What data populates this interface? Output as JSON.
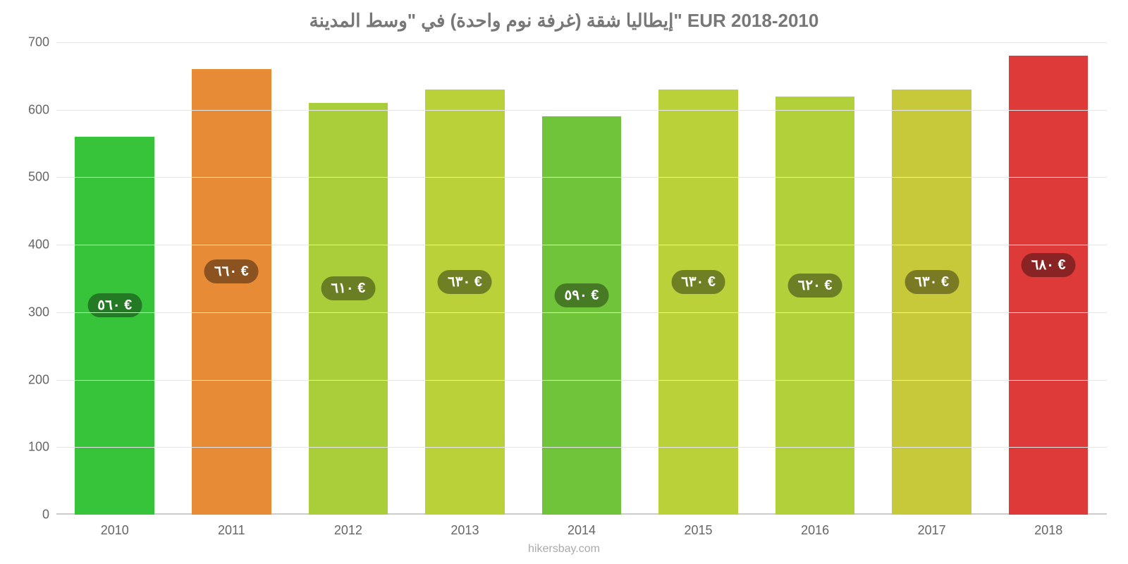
{
  "chart": {
    "type": "bar",
    "title": "إيطاليا شقة (غرفة نوم واحدة) في \"وسط المدينة\" EUR 2018-2010",
    "title_fontsize": 26,
    "title_color": "#777777",
    "background_color": "#ffffff",
    "grid_color": "#e6e6e6",
    "axis_color": "#cccccc",
    "y": {
      "min": 0,
      "max": 700,
      "ticks": [
        0,
        100,
        200,
        300,
        400,
        500,
        600,
        700
      ],
      "tick_fontsize": 18,
      "tick_color": "#666666"
    },
    "x": {
      "categories": [
        "2010",
        "2011",
        "2012",
        "2013",
        "2014",
        "2015",
        "2016",
        "2017",
        "2018"
      ],
      "tick_fontsize": 18,
      "tick_color": "#666666"
    },
    "bar_width_ratio": 0.68,
    "bars": [
      {
        "value": 560,
        "fill": "#38c43a",
        "label": "٥٦٠ €",
        "badge_bg": "#247a24",
        "badge_center": 310
      },
      {
        "value": 660,
        "fill": "#e78b37",
        "label": "٦٦٠ €",
        "badge_bg": "#8a531f",
        "badge_center": 360
      },
      {
        "value": 610,
        "fill": "#a9ce39",
        "label": "٦١٠ €",
        "badge_bg": "#6a7f24",
        "badge_center": 335
      },
      {
        "value": 630,
        "fill": "#bad13a",
        "label": "٦٣٠ €",
        "badge_bg": "#6f7f24",
        "badge_center": 345
      },
      {
        "value": 590,
        "fill": "#6fc43a",
        "label": "٥٩٠ €",
        "badge_bg": "#467a24",
        "badge_center": 325
      },
      {
        "value": 630,
        "fill": "#bad13a",
        "label": "٦٣٠ €",
        "badge_bg": "#6f7f24",
        "badge_center": 345
      },
      {
        "value": 620,
        "fill": "#b2d03a",
        "label": "٦٢٠ €",
        "badge_bg": "#6d7f24",
        "badge_center": 340
      },
      {
        "value": 630,
        "fill": "#c7c83a",
        "label": "٦٣٠ €",
        "badge_bg": "#7a7a24",
        "badge_center": 345
      },
      {
        "value": 680,
        "fill": "#df3a3a",
        "label": "٦٨٠ €",
        "badge_bg": "#8a2424",
        "badge_center": 370
      }
    ],
    "badge_fontsize": 20,
    "source": "hikersbay.com",
    "source_fontsize": 16,
    "source_color": "#aaaaaa"
  }
}
